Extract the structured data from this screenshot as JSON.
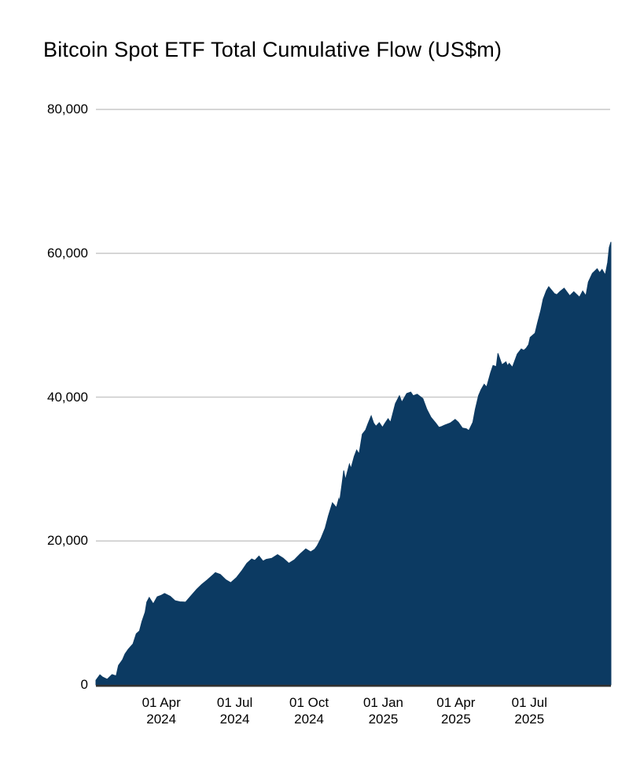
{
  "chart": {
    "title": "Bitcoin Spot ETF Total Cumulative Flow (US$m)"
  },
  "colors": {
    "background": "#ffffff",
    "area_fill": "#0c3a62",
    "gridline": "#c9c9c9",
    "baseline": "#303030",
    "text": "#000000"
  },
  "chart_data": {
    "type": "area",
    "title": "Bitcoin Spot ETF Total Cumulative Flow (US$m)",
    "ylabel": "",
    "xlabel": "",
    "ylim": [
      0,
      80000
    ],
    "grid": "horizontal",
    "legend": "none",
    "x_start_date": "2024-01-11",
    "x_end_date": "2025-10-10",
    "y_ticks": [
      {
        "value": 0,
        "label": "0"
      },
      {
        "value": 20000,
        "label": "20,000"
      },
      {
        "value": 40000,
        "label": "40,000"
      },
      {
        "value": 60000,
        "label": "60,000"
      },
      {
        "value": 80000,
        "label": "80,000"
      }
    ],
    "x_ticks": [
      {
        "date": "2024-04-01",
        "line1": "01 Apr",
        "line2": "2024"
      },
      {
        "date": "2024-07-01",
        "line1": "01 Jul",
        "line2": "2024"
      },
      {
        "date": "2024-10-01",
        "line1": "01 Oct",
        "line2": "2024"
      },
      {
        "date": "2025-01-01",
        "line1": "01 Jan",
        "line2": "2025"
      },
      {
        "date": "2025-04-01",
        "line1": "01 Apr",
        "line2": "2025"
      },
      {
        "date": "2025-07-01",
        "line1": "01 Jul",
        "line2": "2025"
      }
    ],
    "series": [
      {
        "name": "Total Cumulative Flow (US$m)",
        "points": [
          [
            "2024-01-11",
            630
          ],
          [
            "2024-01-16",
            1400
          ],
          [
            "2024-01-19",
            1100
          ],
          [
            "2024-01-25",
            780
          ],
          [
            "2024-01-31",
            1420
          ],
          [
            "2024-02-05",
            1250
          ],
          [
            "2024-02-08",
            2700
          ],
          [
            "2024-02-13",
            3500
          ],
          [
            "2024-02-16",
            4300
          ],
          [
            "2024-02-20",
            4950
          ],
          [
            "2024-02-26",
            5700
          ],
          [
            "2024-03-01",
            7100
          ],
          [
            "2024-03-05",
            7500
          ],
          [
            "2024-03-08",
            8800
          ],
          [
            "2024-03-12",
            10100
          ],
          [
            "2024-03-14",
            11500
          ],
          [
            "2024-03-17",
            12150
          ],
          [
            "2024-03-22",
            11250
          ],
          [
            "2024-03-27",
            12250
          ],
          [
            "2024-04-01",
            12450
          ],
          [
            "2024-04-05",
            12700
          ],
          [
            "2024-04-12",
            12300
          ],
          [
            "2024-04-18",
            11700
          ],
          [
            "2024-04-24",
            11550
          ],
          [
            "2024-05-01",
            11500
          ],
          [
            "2024-05-03",
            11750
          ],
          [
            "2024-05-08",
            12400
          ],
          [
            "2024-05-15",
            13300
          ],
          [
            "2024-05-21",
            13950
          ],
          [
            "2024-05-28",
            14600
          ],
          [
            "2024-06-04",
            15300
          ],
          [
            "2024-06-07",
            15600
          ],
          [
            "2024-06-13",
            15350
          ],
          [
            "2024-06-20",
            14600
          ],
          [
            "2024-06-26",
            14200
          ],
          [
            "2024-07-03",
            14900
          ],
          [
            "2024-07-10",
            15900
          ],
          [
            "2024-07-16",
            16900
          ],
          [
            "2024-07-22",
            17500
          ],
          [
            "2024-07-26",
            17300
          ],
          [
            "2024-07-31",
            17900
          ],
          [
            "2024-08-05",
            17200
          ],
          [
            "2024-08-09",
            17450
          ],
          [
            "2024-08-16",
            17600
          ],
          [
            "2024-08-23",
            18100
          ],
          [
            "2024-08-30",
            17600
          ],
          [
            "2024-09-06",
            16900
          ],
          [
            "2024-09-13",
            17400
          ],
          [
            "2024-09-20",
            18200
          ],
          [
            "2024-09-27",
            18900
          ],
          [
            "2024-10-03",
            18500
          ],
          [
            "2024-10-08",
            18850
          ],
          [
            "2024-10-11",
            19300
          ],
          [
            "2024-10-16",
            20400
          ],
          [
            "2024-10-21",
            21800
          ],
          [
            "2024-10-25",
            23500
          ],
          [
            "2024-10-30",
            25300
          ],
          [
            "2024-11-04",
            24650
          ],
          [
            "2024-11-07",
            25900
          ],
          [
            "2024-11-08",
            25500
          ],
          [
            "2024-11-11",
            28000
          ],
          [
            "2024-11-13",
            29800
          ],
          [
            "2024-11-15",
            28500
          ],
          [
            "2024-11-20",
            30700
          ],
          [
            "2024-11-22",
            30100
          ],
          [
            "2024-11-26",
            31750
          ],
          [
            "2024-11-29",
            32650
          ],
          [
            "2024-12-02",
            32100
          ],
          [
            "2024-12-06",
            34850
          ],
          [
            "2024-12-10",
            35400
          ],
          [
            "2024-12-13",
            36300
          ],
          [
            "2024-12-17",
            37400
          ],
          [
            "2024-12-20",
            36400
          ],
          [
            "2024-12-23",
            35950
          ],
          [
            "2024-12-27",
            36450
          ],
          [
            "2024-12-31",
            35800
          ],
          [
            "2025-01-03",
            36350
          ],
          [
            "2025-01-07",
            37000
          ],
          [
            "2025-01-10",
            36500
          ],
          [
            "2025-01-16",
            39100
          ],
          [
            "2025-01-21",
            40200
          ],
          [
            "2025-01-24",
            39300
          ],
          [
            "2025-01-30",
            40500
          ],
          [
            "2025-02-04",
            40700
          ],
          [
            "2025-02-07",
            40200
          ],
          [
            "2025-02-12",
            40400
          ],
          [
            "2025-02-19",
            39800
          ],
          [
            "2025-02-24",
            38300
          ],
          [
            "2025-03-01",
            37200
          ],
          [
            "2025-03-07",
            36400
          ],
          [
            "2025-03-11",
            35800
          ],
          [
            "2025-03-14",
            35900
          ],
          [
            "2025-03-18",
            36100
          ],
          [
            "2025-03-25",
            36400
          ],
          [
            "2025-03-31",
            36900
          ],
          [
            "2025-04-04",
            36500
          ],
          [
            "2025-04-09",
            35700
          ],
          [
            "2025-04-14",
            35600
          ],
          [
            "2025-04-17",
            35350
          ],
          [
            "2025-04-22",
            36500
          ],
          [
            "2025-04-25",
            38300
          ],
          [
            "2025-04-29",
            40200
          ],
          [
            "2025-05-02",
            41000
          ],
          [
            "2025-05-06",
            41800
          ],
          [
            "2025-05-09",
            41400
          ],
          [
            "2025-05-14",
            43400
          ],
          [
            "2025-05-17",
            44400
          ],
          [
            "2025-05-21",
            44250
          ],
          [
            "2025-05-23",
            46100
          ],
          [
            "2025-05-28",
            44500
          ],
          [
            "2025-06-02",
            44900
          ],
          [
            "2025-06-04",
            44350
          ],
          [
            "2025-06-06",
            44700
          ],
          [
            "2025-06-10",
            44150
          ],
          [
            "2025-06-16",
            46000
          ],
          [
            "2025-06-21",
            46700
          ],
          [
            "2025-06-24",
            46500
          ],
          [
            "2025-06-27",
            46800
          ],
          [
            "2025-06-30",
            47300
          ],
          [
            "2025-07-02",
            48300
          ],
          [
            "2025-07-08",
            48900
          ],
          [
            "2025-07-11",
            50300
          ],
          [
            "2025-07-15",
            52000
          ],
          [
            "2025-07-18",
            53600
          ],
          [
            "2025-07-22",
            54800
          ],
          [
            "2025-07-25",
            55350
          ],
          [
            "2025-08-01",
            54400
          ],
          [
            "2025-08-04",
            54250
          ],
          [
            "2025-08-08",
            54700
          ],
          [
            "2025-08-13",
            55150
          ],
          [
            "2025-08-20",
            54100
          ],
          [
            "2025-08-25",
            54650
          ],
          [
            "2025-09-01",
            53900
          ],
          [
            "2025-09-05",
            54750
          ],
          [
            "2025-09-09",
            54100
          ],
          [
            "2025-09-12",
            56000
          ],
          [
            "2025-09-17",
            57200
          ],
          [
            "2025-09-23",
            57850
          ],
          [
            "2025-09-26",
            57300
          ],
          [
            "2025-09-29",
            57750
          ],
          [
            "2025-10-03",
            57000
          ],
          [
            "2025-10-06",
            58750
          ],
          [
            "2025-10-08",
            60800
          ],
          [
            "2025-10-10",
            61570
          ]
        ]
      }
    ]
  }
}
